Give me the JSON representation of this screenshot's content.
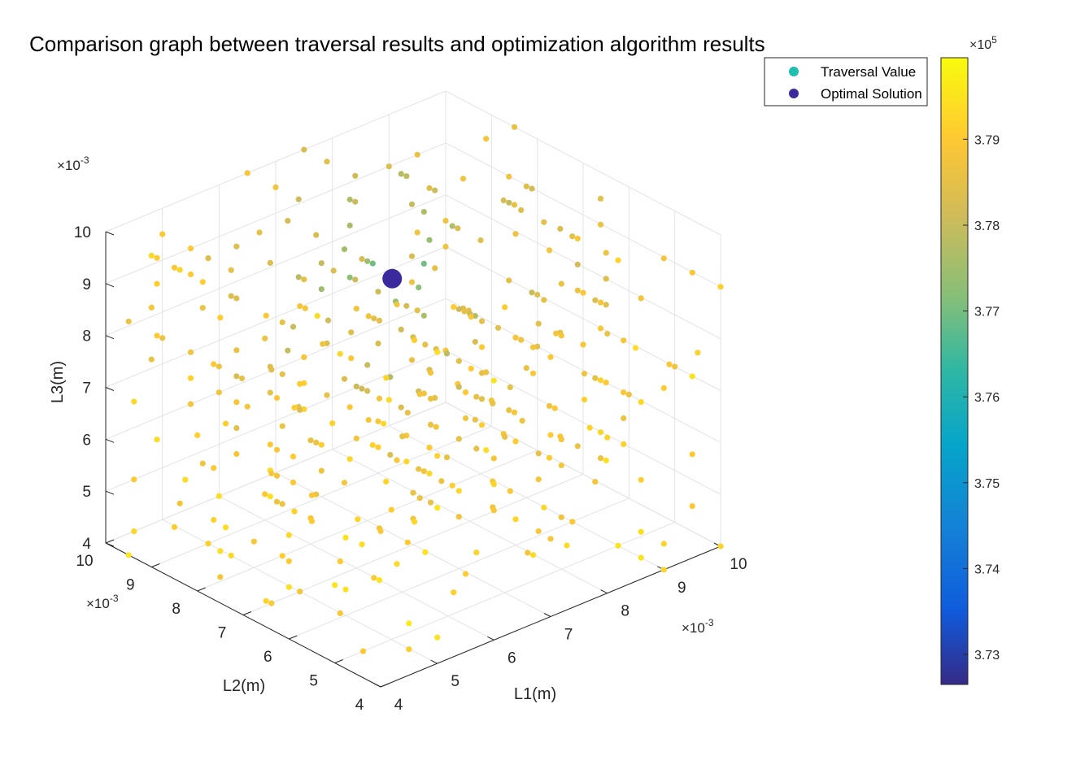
{
  "chart_data": {
    "type": "scatter",
    "title": "Comparison graph between traversal results and optimization algorithm results",
    "xlabel": "L1(m)",
    "ylabel": "L2(m)",
    "zlabel": "L3(m)",
    "x_ticks": [
      "4",
      "5",
      "6",
      "7",
      "8",
      "9",
      "10"
    ],
    "y_ticks": [
      "4",
      "5",
      "6",
      "7",
      "8",
      "9",
      "10"
    ],
    "z_ticks": [
      "4",
      "5",
      "6",
      "7",
      "8",
      "9",
      "10"
    ],
    "x_multiplier": "×10",
    "y_multiplier": "×10",
    "z_multiplier": "×10",
    "multiplier_exponent": "-3",
    "xlim": [
      0.004,
      0.01
    ],
    "ylim": [
      0.004,
      0.01
    ],
    "zlim": [
      0.004,
      0.01
    ],
    "grid": true,
    "legend_position": "top-right",
    "series": [
      {
        "name": "Traversal Value",
        "color": "#1fbfb0",
        "marker": "small-dot",
        "note_values": "379 traversal points on a 0.5e-3 grid, L1,L2,L3 from 4e-3 to 10e-3; colour = objective value"
      },
      {
        "name": "Optimal Solution",
        "color": "#3a2a9e",
        "marker": "large-dot",
        "point": {
          "x": 0.0076,
          "y": 0.0082,
          "z": 0.0083
        }
      }
    ],
    "colorbar": {
      "multiplier": "×10",
      "exponent": "5",
      "range": [
        3.7265,
        3.7995
      ],
      "ticks": [
        "3.73",
        "3.74",
        "3.75",
        "3.76",
        "3.77",
        "3.78",
        "3.79"
      ],
      "tick_values": [
        3.73,
        3.74,
        3.75,
        3.76,
        3.77,
        3.78,
        3.79
      ],
      "colormap": "parula"
    }
  }
}
